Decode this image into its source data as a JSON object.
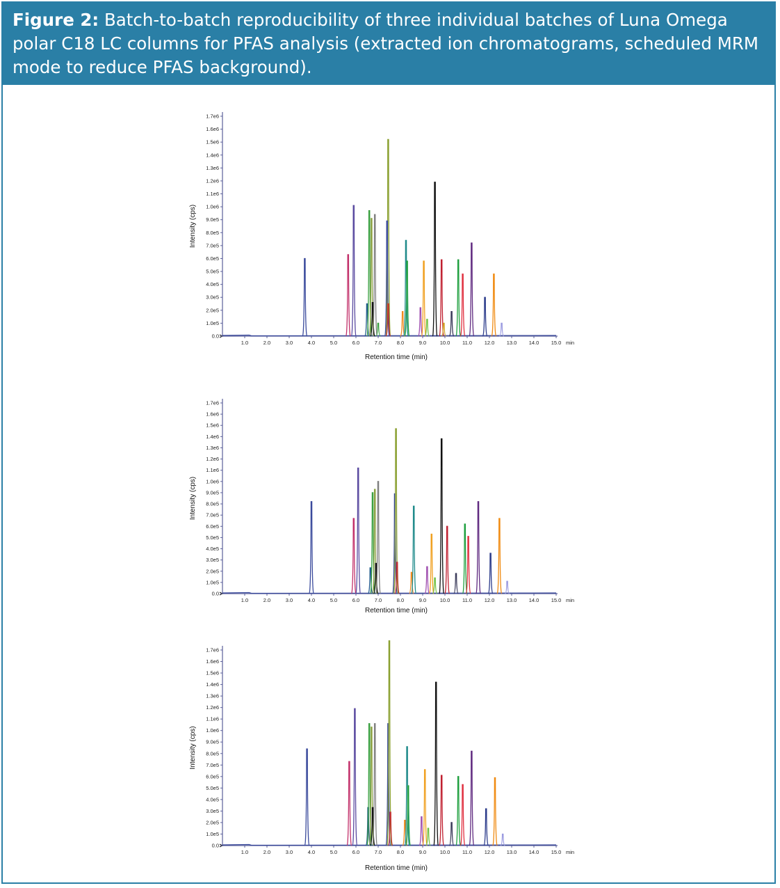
{
  "figure": {
    "label": "Figure 2:",
    "caption": "Batch-to-batch reproducibility of three individual batches of Luna Omega polar C18 LC columns for PFAS analysis (extracted ion chromatograms, scheduled MRM mode to reduce PFAS background)."
  },
  "colors": {
    "frame": "#2a7fa6",
    "caption_bg": "#2a7fa6",
    "axis": "#5a5f9a"
  },
  "chart_data": [
    {
      "type": "line",
      "xlabel": "Retention time (min)",
      "ylabel": "Intensity (cps)",
      "x_unit": "min",
      "xlim": [
        0,
        15.0
      ],
      "ylim": [
        0,
        1700000
      ],
      "x_ticks": [
        "1.0",
        "2.0",
        "3.0",
        "4.0",
        "5.0",
        "6.0",
        "7.0",
        "8.0",
        "9.0",
        "10.0",
        "11.0",
        "12.0",
        "13.0",
        "14.0",
        "15.0"
      ],
      "y_ticks": [
        "0.0",
        "1.0e5",
        "2.0e5",
        "3.0e5",
        "4.0e5",
        "5.0e5",
        "6.0e5",
        "7.0e5",
        "8.0e5",
        "9.0e5",
        "1.0e6",
        "1.1e6",
        "1.2e6",
        "1.3e6",
        "1.4e6",
        "1.5e6",
        "1.6e6",
        "1.7e6"
      ],
      "peaks": [
        {
          "rt": 3.7,
          "h": 600000,
          "color": "#3a4a9c"
        },
        {
          "rt": 5.65,
          "h": 630000,
          "color": "#c2306a"
        },
        {
          "rt": 5.9,
          "h": 1010000,
          "color": "#5a4aa0"
        },
        {
          "rt": 6.5,
          "h": 250000,
          "color": "#1e5a8a"
        },
        {
          "rt": 6.6,
          "h": 970000,
          "color": "#3aa040"
        },
        {
          "rt": 6.7,
          "h": 910000,
          "color": "#8aa040"
        },
        {
          "rt": 6.75,
          "h": 260000,
          "color": "#111111"
        },
        {
          "rt": 6.85,
          "h": 940000,
          "color": "#808080"
        },
        {
          "rt": 7.0,
          "h": 100000,
          "color": "#3aa040"
        },
        {
          "rt": 7.45,
          "h": 1520000,
          "color": "#8aa030"
        },
        {
          "rt": 7.4,
          "h": 890000,
          "color": "#3a4a9c"
        },
        {
          "rt": 7.45,
          "h": 250000,
          "color": "#c23030"
        },
        {
          "rt": 8.1,
          "h": 190000,
          "color": "#f08a20"
        },
        {
          "rt": 8.25,
          "h": 740000,
          "color": "#1e8a8a"
        },
        {
          "rt": 8.3,
          "h": 580000,
          "color": "#20a040"
        },
        {
          "rt": 8.9,
          "h": 220000,
          "color": "#a050b0"
        },
        {
          "rt": 9.05,
          "h": 580000,
          "color": "#f0a020"
        },
        {
          "rt": 9.2,
          "h": 130000,
          "color": "#70c040"
        },
        {
          "rt": 9.55,
          "h": 1190000,
          "color": "#111111"
        },
        {
          "rt": 9.85,
          "h": 590000,
          "color": "#c02030"
        },
        {
          "rt": 9.95,
          "h": 100000,
          "color": "#d0a020"
        },
        {
          "rt": 10.3,
          "h": 190000,
          "color": "#3a3a5a"
        },
        {
          "rt": 10.6,
          "h": 590000,
          "color": "#20a040"
        },
        {
          "rt": 10.8,
          "h": 480000,
          "color": "#e03040"
        },
        {
          "rt": 11.2,
          "h": 720000,
          "color": "#602a80"
        },
        {
          "rt": 11.8,
          "h": 300000,
          "color": "#2a3a8a"
        },
        {
          "rt": 12.2,
          "h": 480000,
          "color": "#f08a10"
        },
        {
          "rt": 12.55,
          "h": 100000,
          "color": "#9a9ae0"
        }
      ]
    },
    {
      "type": "line",
      "xlabel": "Retention time (min)",
      "ylabel": "Intensity (cps)",
      "x_unit": "min",
      "xlim": [
        0,
        15.0
      ],
      "ylim": [
        0,
        1700000
      ],
      "x_ticks": [
        "1.0",
        "2.0",
        "3.0",
        "4.0",
        "5.0",
        "6.0",
        "7.0",
        "8.0",
        "9.0",
        "10.0",
        "11.0",
        "12.0",
        "13.0",
        "14.0",
        "15.0"
      ],
      "y_ticks": [
        "0.0",
        "1.0e5",
        "2.0e5",
        "3.0e5",
        "4.0e5",
        "5.0e5",
        "6.0e5",
        "7.0e5",
        "8.0e5",
        "9.0e5",
        "1.0e6",
        "1.1e6",
        "1.2e6",
        "1.3e6",
        "1.4e6",
        "1.5e6",
        "1.6e6",
        "1.7e6"
      ],
      "peaks": [
        {
          "rt": 4.0,
          "h": 820000,
          "color": "#3a4a9c"
        },
        {
          "rt": 5.9,
          "h": 670000,
          "color": "#c2306a"
        },
        {
          "rt": 6.1,
          "h": 1120000,
          "color": "#5a4aa0"
        },
        {
          "rt": 6.65,
          "h": 230000,
          "color": "#1e5a8a"
        },
        {
          "rt": 6.75,
          "h": 900000,
          "color": "#3aa040"
        },
        {
          "rt": 6.85,
          "h": 930000,
          "color": "#8aa040"
        },
        {
          "rt": 6.9,
          "h": 270000,
          "color": "#111111"
        },
        {
          "rt": 7.0,
          "h": 1000000,
          "color": "#808080"
        },
        {
          "rt": 7.75,
          "h": 890000,
          "color": "#3a4a9c"
        },
        {
          "rt": 7.8,
          "h": 1470000,
          "color": "#8aa030"
        },
        {
          "rt": 7.85,
          "h": 280000,
          "color": "#c23030"
        },
        {
          "rt": 8.5,
          "h": 190000,
          "color": "#f08a20"
        },
        {
          "rt": 8.6,
          "h": 780000,
          "color": "#1e8a8a"
        },
        {
          "rt": 9.2,
          "h": 240000,
          "color": "#a050b0"
        },
        {
          "rt": 9.4,
          "h": 530000,
          "color": "#f0a020"
        },
        {
          "rt": 9.55,
          "h": 140000,
          "color": "#70c040"
        },
        {
          "rt": 9.85,
          "h": 1380000,
          "color": "#111111"
        },
        {
          "rt": 10.1,
          "h": 600000,
          "color": "#c02030"
        },
        {
          "rt": 10.5,
          "h": 180000,
          "color": "#3a3a5a"
        },
        {
          "rt": 10.9,
          "h": 620000,
          "color": "#20a040"
        },
        {
          "rt": 11.05,
          "h": 510000,
          "color": "#e03040"
        },
        {
          "rt": 11.5,
          "h": 820000,
          "color": "#602a80"
        },
        {
          "rt": 12.05,
          "h": 360000,
          "color": "#2a3a8a"
        },
        {
          "rt": 12.45,
          "h": 670000,
          "color": "#f08a10"
        },
        {
          "rt": 12.8,
          "h": 110000,
          "color": "#9a9ae0"
        }
      ]
    },
    {
      "type": "line",
      "xlabel": "Retention time (min)",
      "ylabel": "Intensity (cps)",
      "x_unit": "min",
      "xlim": [
        0,
        15.0
      ],
      "ylim": [
        0,
        1700000
      ],
      "x_ticks": [
        "1.0",
        "2.0",
        "3.0",
        "4.0",
        "5.0",
        "6.0",
        "7.0",
        "8.0",
        "9.0",
        "10.0",
        "11.0",
        "12.0",
        "13.0",
        "14.0",
        "15.0"
      ],
      "y_ticks": [
        "0.0",
        "1.0e5",
        "2.0e5",
        "3.0e5",
        "4.0e5",
        "5.0e5",
        "6.0e5",
        "7.0e5",
        "8.0e5",
        "9.0e5",
        "1.0e6",
        "1.1e6",
        "1.2e6",
        "1.3e6",
        "1.4e6",
        "1.5e6",
        "1.6e6",
        "1.7e6"
      ],
      "peaks": [
        {
          "rt": 3.8,
          "h": 840000,
          "color": "#3a4a9c"
        },
        {
          "rt": 5.7,
          "h": 730000,
          "color": "#c2306a"
        },
        {
          "rt": 5.95,
          "h": 1190000,
          "color": "#5a4aa0"
        },
        {
          "rt": 6.55,
          "h": 330000,
          "color": "#1e5a8a"
        },
        {
          "rt": 6.6,
          "h": 1060000,
          "color": "#3aa040"
        },
        {
          "rt": 6.7,
          "h": 1030000,
          "color": "#8aa040"
        },
        {
          "rt": 6.75,
          "h": 330000,
          "color": "#111111"
        },
        {
          "rt": 6.85,
          "h": 1060000,
          "color": "#808080"
        },
        {
          "rt": 7.45,
          "h": 1060000,
          "color": "#3a4a9c"
        },
        {
          "rt": 7.5,
          "h": 1780000,
          "color": "#8aa030"
        },
        {
          "rt": 7.55,
          "h": 290000,
          "color": "#c23030"
        },
        {
          "rt": 8.2,
          "h": 220000,
          "color": "#f08a20"
        },
        {
          "rt": 8.3,
          "h": 860000,
          "color": "#1e8a8a"
        },
        {
          "rt": 8.35,
          "h": 520000,
          "color": "#20a040"
        },
        {
          "rt": 8.95,
          "h": 250000,
          "color": "#a050b0"
        },
        {
          "rt": 9.1,
          "h": 660000,
          "color": "#f0a020"
        },
        {
          "rt": 9.25,
          "h": 150000,
          "color": "#70c040"
        },
        {
          "rt": 9.6,
          "h": 1420000,
          "color": "#111111"
        },
        {
          "rt": 9.85,
          "h": 610000,
          "color": "#c02030"
        },
        {
          "rt": 10.3,
          "h": 200000,
          "color": "#3a3a5a"
        },
        {
          "rt": 10.6,
          "h": 600000,
          "color": "#20a040"
        },
        {
          "rt": 10.8,
          "h": 530000,
          "color": "#e03040"
        },
        {
          "rt": 11.2,
          "h": 820000,
          "color": "#602a80"
        },
        {
          "rt": 11.85,
          "h": 320000,
          "color": "#2a3a8a"
        },
        {
          "rt": 12.25,
          "h": 590000,
          "color": "#f08a10"
        },
        {
          "rt": 12.6,
          "h": 100000,
          "color": "#9a9ae0"
        }
      ]
    }
  ]
}
